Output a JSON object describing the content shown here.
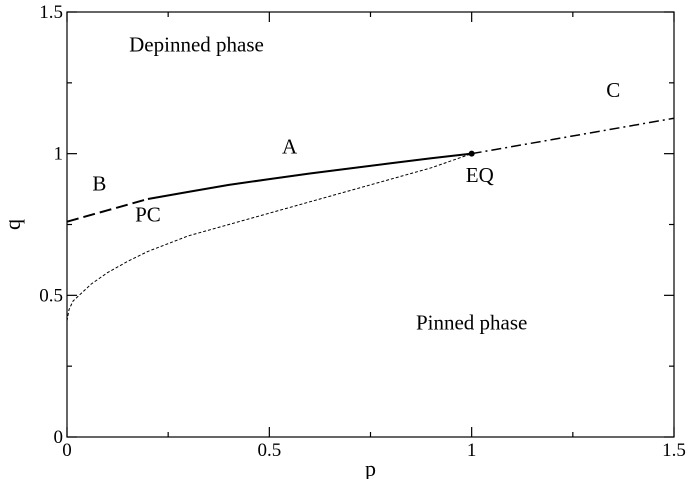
{
  "chart_data": {
    "type": "line",
    "xlabel": "p",
    "ylabel": "q",
    "xlim": [
      0,
      1.5
    ],
    "ylim": [
      0,
      1.5
    ],
    "x_ticks": [
      {
        "value": 0,
        "label": "0"
      },
      {
        "value": 0.5,
        "label": "0.5"
      },
      {
        "value": 1,
        "label": "1"
      },
      {
        "value": 1.5,
        "label": "1.5"
      }
    ],
    "y_ticks": [
      {
        "value": 0,
        "label": "0"
      },
      {
        "value": 0.5,
        "label": "0.5"
      },
      {
        "value": 1,
        "label": "1"
      },
      {
        "value": 1.5,
        "label": "1.5"
      }
    ],
    "grid": false,
    "series": [
      {
        "id": "A",
        "style": "solid",
        "color": "#000000",
        "points": [
          [
            0.2,
            0.84
          ],
          [
            0.3,
            0.865
          ],
          [
            0.4,
            0.89
          ],
          [
            0.5,
            0.91
          ],
          [
            0.6,
            0.93
          ],
          [
            0.7,
            0.948
          ],
          [
            0.8,
            0.966
          ],
          [
            0.9,
            0.984
          ],
          [
            1.0,
            1.0
          ]
        ]
      },
      {
        "id": "B",
        "style": "dashed",
        "color": "#000000",
        "points": [
          [
            0.0,
            0.76
          ],
          [
            0.1,
            0.8
          ],
          [
            0.2,
            0.84
          ]
        ]
      },
      {
        "id": "C",
        "style": "dash-dot",
        "color": "#000000",
        "points": [
          [
            1.0,
            1.0
          ],
          [
            1.5,
            1.125
          ]
        ]
      },
      {
        "id": "PC",
        "style": "dotted",
        "color": "#000000",
        "points": [
          [
            0.0,
            0.41
          ],
          [
            0.005,
            0.45
          ],
          [
            0.015,
            0.48
          ],
          [
            0.03,
            0.5
          ],
          [
            0.06,
            0.54
          ],
          [
            0.1,
            0.58
          ],
          [
            0.15,
            0.62
          ],
          [
            0.2,
            0.655
          ],
          [
            0.3,
            0.71
          ],
          [
            0.4,
            0.75
          ],
          [
            0.5,
            0.79
          ],
          [
            0.6,
            0.83
          ],
          [
            0.7,
            0.87
          ],
          [
            0.8,
            0.91
          ],
          [
            0.9,
            0.95
          ],
          [
            1.0,
            1.0
          ]
        ]
      }
    ],
    "markers": [
      {
        "x": 1.0,
        "y": 1.0,
        "label": "EQ"
      }
    ],
    "annotations": [
      {
        "text": "Depinned phase",
        "x": 0.32,
        "y": 1.36
      },
      {
        "text": "Pinned phase",
        "x": 1.0,
        "y": 0.38
      },
      {
        "text": "A",
        "x": 0.55,
        "y": 1.0
      },
      {
        "text": "B",
        "x": 0.08,
        "y": 0.87
      },
      {
        "text": "C",
        "x": 1.35,
        "y": 1.2
      },
      {
        "text": "PC",
        "x": 0.2,
        "y": 0.76
      },
      {
        "text": "EQ",
        "x": 1.02,
        "y": 0.9
      }
    ]
  }
}
